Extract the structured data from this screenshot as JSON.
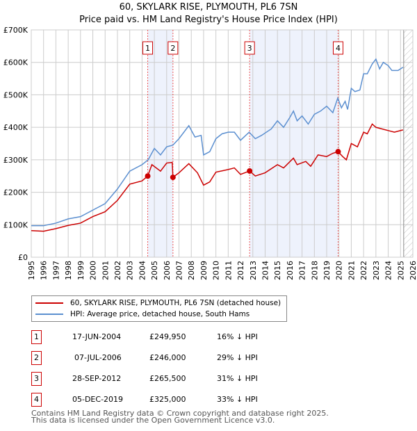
{
  "header": {
    "title": "60, SKYLARK RISE, PLYMOUTH, PL6 7SN",
    "subtitle": "Price paid vs. HM Land Registry's House Price Index (HPI)"
  },
  "chart_data": {
    "type": "line",
    "title": "60, SKYLARK RISE, PLYMOUTH, PL6 7SN",
    "subtitle": "Price paid vs. HM Land Registry's House Price Index (HPI)",
    "xlim": [
      1995,
      2026
    ],
    "ylim": [
      0,
      700000
    ],
    "yticks": [
      {
        "v": 0,
        "label": "£0"
      },
      {
        "v": 100000,
        "label": "£100K"
      },
      {
        "v": 200000,
        "label": "£200K"
      },
      {
        "v": 300000,
        "label": "£300K"
      },
      {
        "v": 400000,
        "label": "£400K"
      },
      {
        "v": 500000,
        "label": "£500K"
      },
      {
        "v": 600000,
        "label": "£600K"
      },
      {
        "v": 700000,
        "label": "£700K"
      }
    ],
    "xticks": [
      "1995",
      "1996",
      "1997",
      "1998",
      "1999",
      "2000",
      "2001",
      "2002",
      "2003",
      "2004",
      "2005",
      "2006",
      "2007",
      "2008",
      "2009",
      "2010",
      "2011",
      "2012",
      "2013",
      "2014",
      "2015",
      "2016",
      "2017",
      "2018",
      "2019",
      "2020",
      "2021",
      "2022",
      "2023",
      "2024",
      "2025",
      "2026"
    ],
    "grid": true,
    "colors": {
      "property": "#cc0000",
      "hpi": "#5b8fd0",
      "shade": "#eef2fc",
      "marker_border": "#cc0000"
    },
    "series": [
      {
        "name": "60, SKYLARK RISE, PLYMOUTH, PL6 7SN (detached house)",
        "key": "property",
        "points": [
          [
            1995,
            82000
          ],
          [
            1996,
            80000
          ],
          [
            1997,
            88000
          ],
          [
            1998,
            98000
          ],
          [
            1999,
            105000
          ],
          [
            2000,
            125000
          ],
          [
            2001,
            140000
          ],
          [
            2002,
            175000
          ],
          [
            2003,
            225000
          ],
          [
            2004,
            235000
          ],
          [
            2004.46,
            249950
          ],
          [
            2004.8,
            285000
          ],
          [
            2005.5,
            265000
          ],
          [
            2006,
            290000
          ],
          [
            2006.45,
            292000
          ],
          [
            2006.51,
            246000
          ],
          [
            2007,
            260000
          ],
          [
            2007.8,
            288000
          ],
          [
            2008.5,
            260000
          ],
          [
            2009,
            222000
          ],
          [
            2009.5,
            232000
          ],
          [
            2010,
            262000
          ],
          [
            2011,
            270000
          ],
          [
            2011.5,
            275000
          ],
          [
            2012,
            255000
          ],
          [
            2012.74,
            265500
          ],
          [
            2013.2,
            250000
          ],
          [
            2014,
            260000
          ],
          [
            2015,
            285000
          ],
          [
            2015.5,
            275000
          ],
          [
            2016.3,
            305000
          ],
          [
            2016.6,
            285000
          ],
          [
            2017.3,
            295000
          ],
          [
            2017.7,
            280000
          ],
          [
            2018.3,
            315000
          ],
          [
            2019,
            310000
          ],
          [
            2019.5,
            320000
          ],
          [
            2019.93,
            325000
          ],
          [
            2020.3,
            310000
          ],
          [
            2020.6,
            300000
          ],
          [
            2021,
            350000
          ],
          [
            2021.5,
            340000
          ],
          [
            2022,
            385000
          ],
          [
            2022.3,
            380000
          ],
          [
            2022.7,
            410000
          ],
          [
            2023,
            400000
          ],
          [
            2023.5,
            395000
          ],
          [
            2024,
            390000
          ],
          [
            2024.5,
            385000
          ],
          [
            2025.2,
            392000
          ]
        ]
      },
      {
        "name": "HPI: Average price, detached house, South Hams",
        "key": "hpi",
        "points": [
          [
            1995,
            97000
          ],
          [
            1996,
            97000
          ],
          [
            1997,
            105000
          ],
          [
            1998,
            118000
          ],
          [
            1999,
            125000
          ],
          [
            2000,
            145000
          ],
          [
            2001,
            165000
          ],
          [
            2002,
            210000
          ],
          [
            2003,
            265000
          ],
          [
            2004,
            285000
          ],
          [
            2004.5,
            300000
          ],
          [
            2005,
            335000
          ],
          [
            2005.5,
            315000
          ],
          [
            2006,
            340000
          ],
          [
            2006.5,
            345000
          ],
          [
            2007,
            365000
          ],
          [
            2007.8,
            405000
          ],
          [
            2008.3,
            370000
          ],
          [
            2008.8,
            375000
          ],
          [
            2009,
            315000
          ],
          [
            2009.5,
            325000
          ],
          [
            2010,
            365000
          ],
          [
            2010.5,
            380000
          ],
          [
            2011,
            385000
          ],
          [
            2011.5,
            385000
          ],
          [
            2012,
            360000
          ],
          [
            2012.7,
            385000
          ],
          [
            2013.2,
            365000
          ],
          [
            2013.7,
            375000
          ],
          [
            2014.5,
            395000
          ],
          [
            2015,
            420000
          ],
          [
            2015.5,
            400000
          ],
          [
            2016,
            430000
          ],
          [
            2016.3,
            450000
          ],
          [
            2016.6,
            420000
          ],
          [
            2017,
            435000
          ],
          [
            2017.5,
            410000
          ],
          [
            2018,
            440000
          ],
          [
            2018.5,
            450000
          ],
          [
            2019,
            465000
          ],
          [
            2019.5,
            445000
          ],
          [
            2019.9,
            490000
          ],
          [
            2020.2,
            460000
          ],
          [
            2020.5,
            480000
          ],
          [
            2020.7,
            455000
          ],
          [
            2021,
            520000
          ],
          [
            2021.3,
            510000
          ],
          [
            2021.7,
            515000
          ],
          [
            2022,
            565000
          ],
          [
            2022.3,
            565000
          ],
          [
            2022.7,
            595000
          ],
          [
            2023,
            610000
          ],
          [
            2023.3,
            580000
          ],
          [
            2023.6,
            600000
          ],
          [
            2024,
            590000
          ],
          [
            2024.3,
            575000
          ],
          [
            2024.8,
            575000
          ],
          [
            2025.2,
            585000
          ]
        ]
      }
    ],
    "sales": [
      {
        "id": "1",
        "x": 2004.46,
        "value": 249950,
        "date": "17-JUN-2004",
        "price": "£249,950",
        "delta": "16% ↓ HPI"
      },
      {
        "id": "2",
        "x": 2006.51,
        "value": 246000,
        "date": "07-JUL-2006",
        "price": "£246,000",
        "delta": "29% ↓ HPI"
      },
      {
        "id": "3",
        "x": 2012.74,
        "value": 265500,
        "date": "28-SEP-2012",
        "price": "£265,500",
        "delta": "31% ↓ HPI"
      },
      {
        "id": "4",
        "x": 2019.93,
        "value": 325000,
        "date": "05-DEC-2019",
        "price": "£325,000",
        "delta": "33% ↓ HPI"
      }
    ],
    "shaded_ranges": [
      [
        2004.46,
        2006.51
      ],
      [
        2012.74,
        2019.93
      ]
    ],
    "projection_from": 2025.2,
    "legend": "bottom"
  },
  "footer": {
    "line1": "Contains HM Land Registry data © Crown copyright and database right 2025.",
    "line2": "This data is licensed under the Open Government Licence v3.0."
  }
}
